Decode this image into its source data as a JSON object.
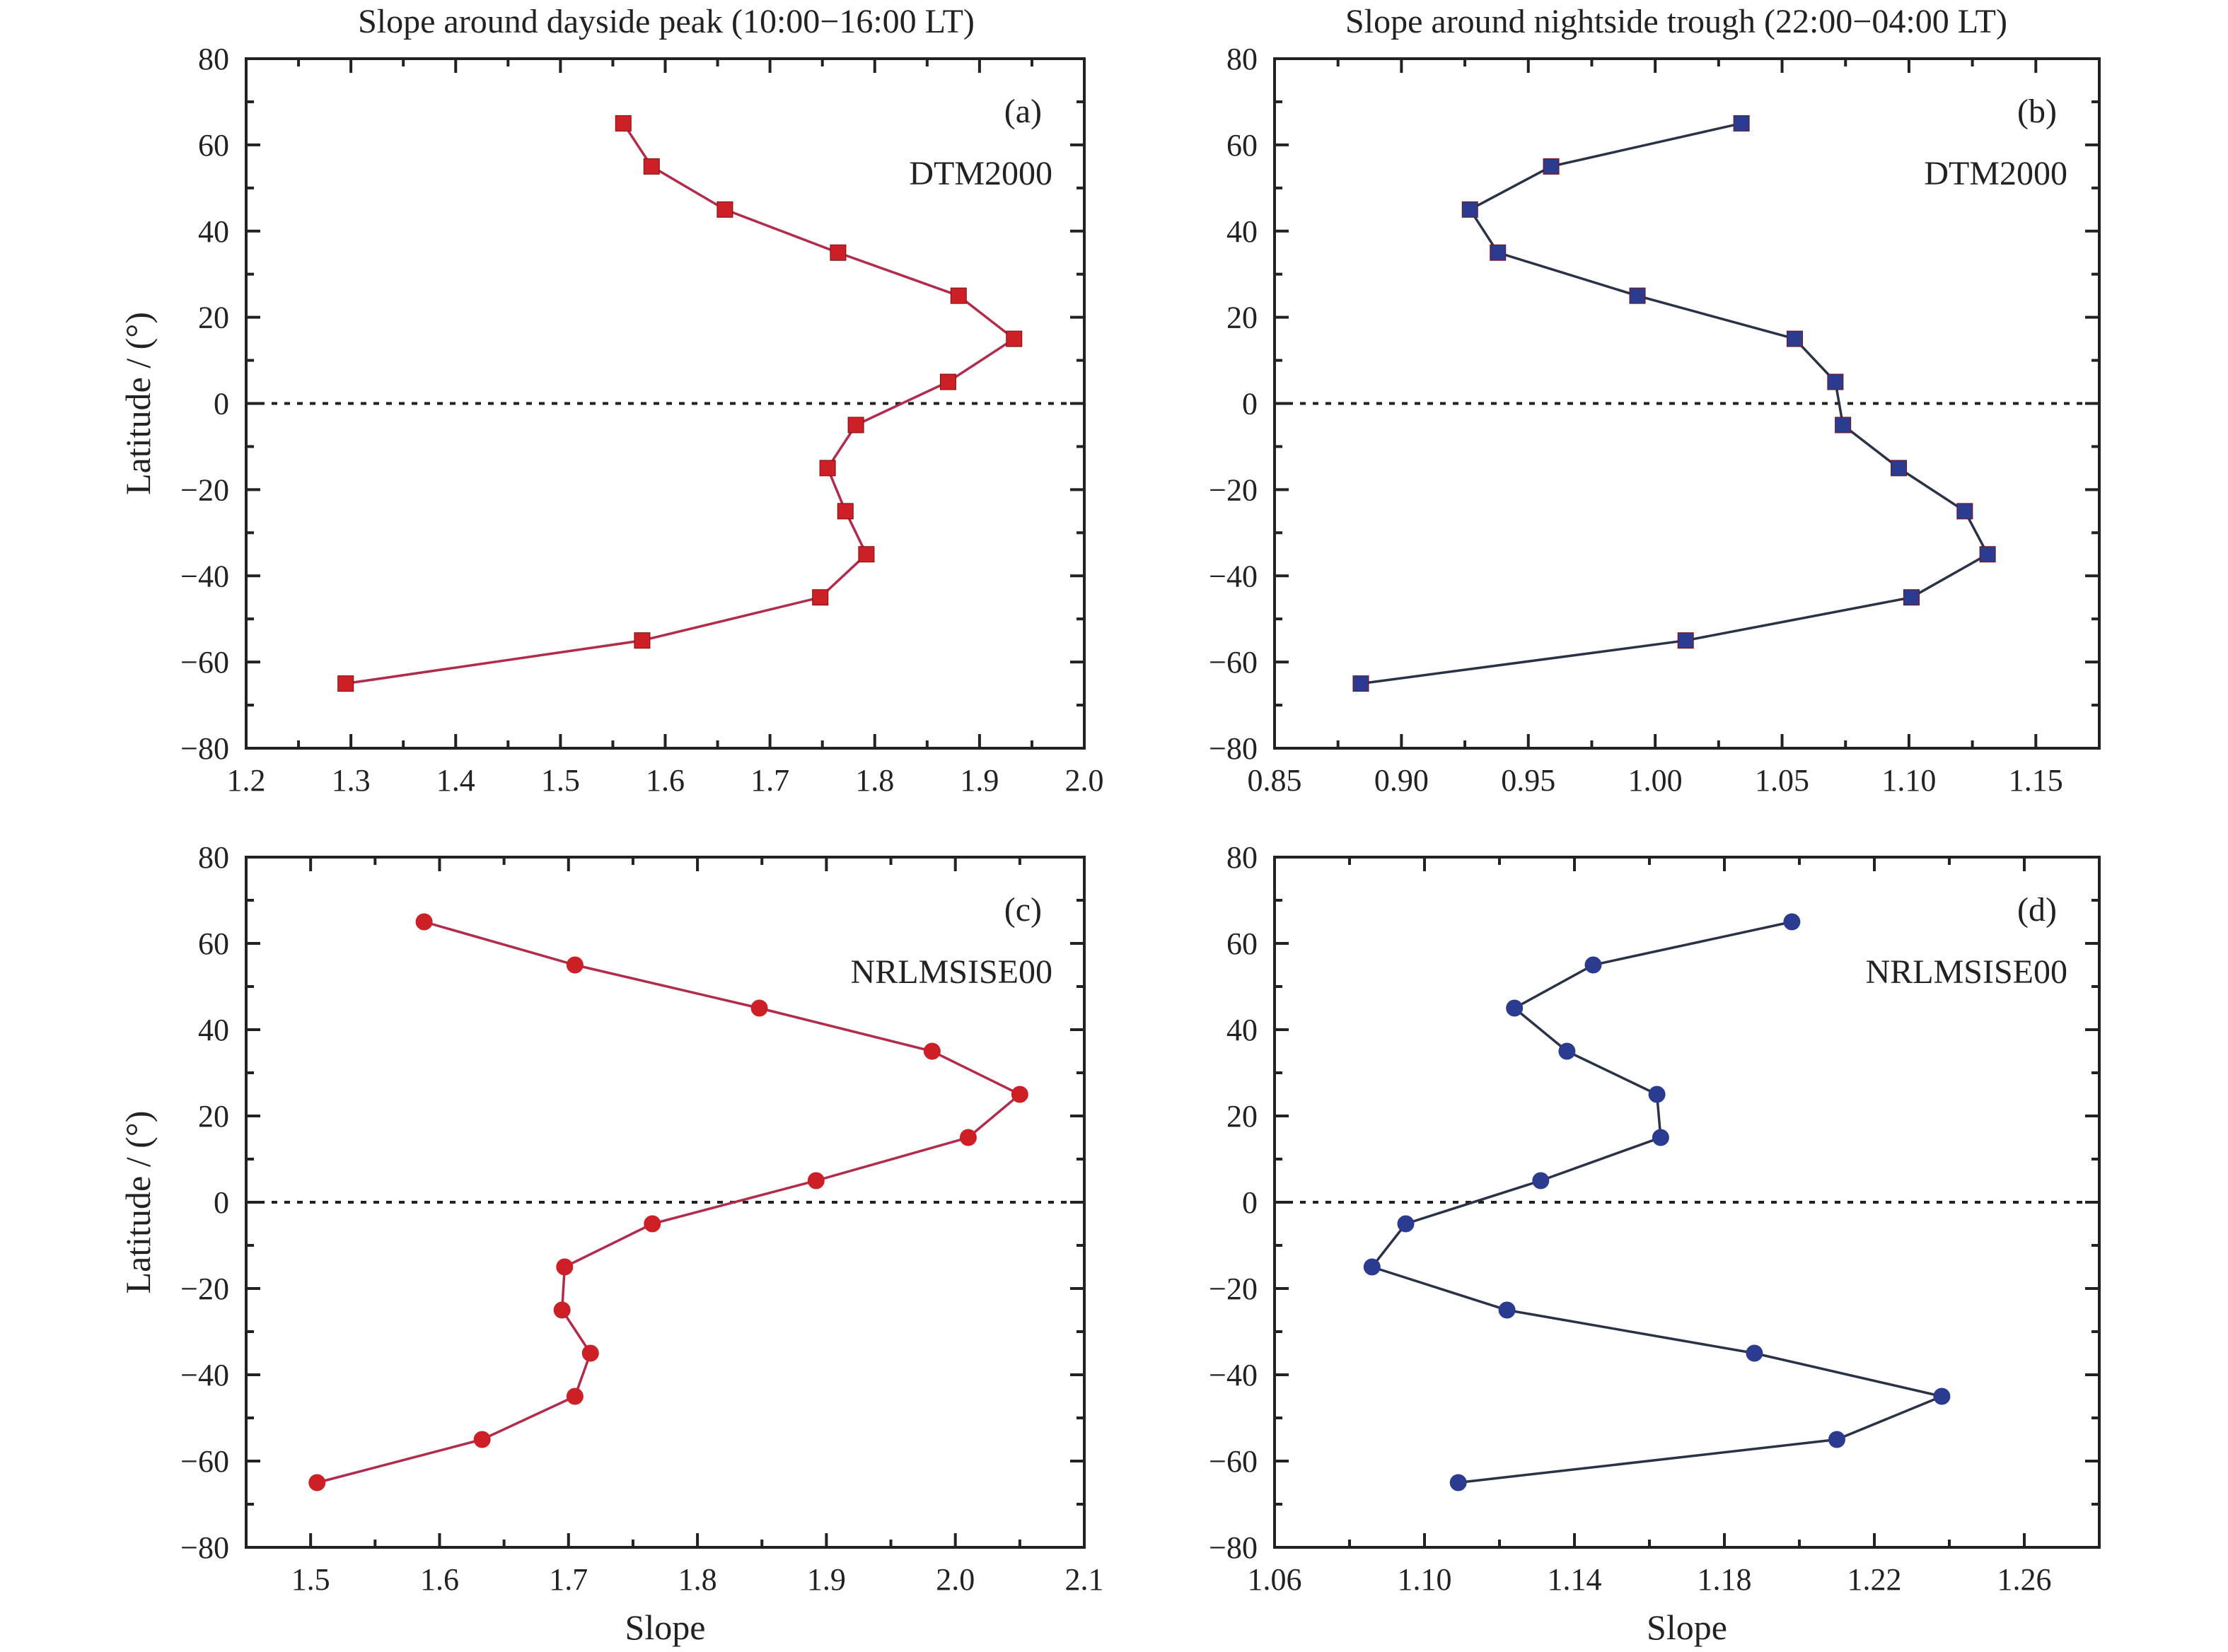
{
  "colors": {
    "red_marker": "#cc1f26",
    "red_line": "#b22b4a",
    "blue_marker": "#2b3b8f",
    "blue_line": "#2a3247",
    "axis": "#222222"
  },
  "column_titles": {
    "left": "Slope around dayside peak (10:00−16:00 LT)",
    "right": "Slope around nightside trough (22:00−04:00 LT)"
  },
  "chart_data": [
    {
      "id": "a",
      "type": "line",
      "marker": "square",
      "color": "red",
      "panel_label": "(a)",
      "model_label": "DTM2000",
      "xlabel": "",
      "ylabel": "Latitude / (°)",
      "xlim": [
        1.2,
        2.0
      ],
      "ylim": [
        -80,
        80
      ],
      "xticks": [
        1.2,
        1.3,
        1.4,
        1.5,
        1.6,
        1.7,
        1.8,
        1.9,
        2.0
      ],
      "xtick_labels": [
        "1.2",
        "1.3",
        "1.4",
        "1.5",
        "1.6",
        "1.7",
        "1.8",
        "1.9",
        "2.0"
      ],
      "yticks": [
        -80,
        -60,
        -40,
        -20,
        0,
        20,
        40,
        60,
        80
      ],
      "ytick_labels": [
        "−80",
        "−60",
        "−40",
        "−20",
        "0",
        "20",
        "40",
        "60",
        "80"
      ],
      "y": [
        65,
        55,
        45,
        35,
        25,
        15,
        5,
        -5,
        -15,
        -25,
        -35,
        -45,
        -55,
        -65
      ],
      "x": [
        1.56,
        1.587,
        1.657,
        1.765,
        1.88,
        1.933,
        1.87,
        1.782,
        1.755,
        1.772,
        1.792,
        1.748,
        1.578,
        1.295
      ]
    },
    {
      "id": "b",
      "type": "line",
      "marker": "square",
      "color": "blue",
      "panel_label": "(b)",
      "model_label": "DTM2000",
      "xlabel": "",
      "ylabel": "",
      "xlim": [
        0.85,
        1.175
      ],
      "ylim": [
        -80,
        80
      ],
      "xticks": [
        0.85,
        0.9,
        0.95,
        1.0,
        1.05,
        1.1,
        1.15
      ],
      "xtick_labels": [
        "0.85",
        "0.90",
        "0.95",
        "1.00",
        "1.05",
        "1.10",
        "1.15"
      ],
      "yticks": [
        -80,
        -60,
        -40,
        -20,
        0,
        20,
        40,
        60,
        80
      ],
      "ytick_labels": [
        "−80",
        "−60",
        "−40",
        "−20",
        "0",
        "20",
        "40",
        "60",
        "80"
      ],
      "y": [
        65,
        55,
        45,
        35,
        25,
        15,
        5,
        -5,
        -15,
        -25,
        -35,
        -45,
        -55,
        -65
      ],
      "x": [
        1.034,
        0.959,
        0.927,
        0.938,
        0.993,
        1.055,
        1.071,
        1.074,
        1.096,
        1.122,
        1.131,
        1.101,
        1.012,
        0.884
      ]
    },
    {
      "id": "c",
      "type": "line",
      "marker": "circle",
      "color": "red",
      "panel_label": "(c)",
      "model_label": "NRLMSISE00",
      "xlabel": "Slope",
      "ylabel": "Latitude / (°)",
      "xlim": [
        1.45,
        2.1
      ],
      "ylim": [
        -80,
        80
      ],
      "xticks": [
        1.5,
        1.6,
        1.7,
        1.8,
        1.9,
        2.0,
        2.1
      ],
      "xtick_labels": [
        "1.5",
        "1.6",
        "1.7",
        "1.8",
        "1.9",
        "2.0",
        "2.1"
      ],
      "yticks": [
        -80,
        -60,
        -40,
        -20,
        0,
        20,
        40,
        60,
        80
      ],
      "ytick_labels": [
        "−80",
        "−60",
        "−40",
        "−20",
        "0",
        "20",
        "40",
        "60",
        "80"
      ],
      "y": [
        65,
        55,
        45,
        35,
        25,
        15,
        5,
        -5,
        -15,
        -25,
        -35,
        -45,
        -55,
        -65
      ],
      "x": [
        1.588,
        1.705,
        1.848,
        1.982,
        2.05,
        2.01,
        1.892,
        1.765,
        1.697,
        1.695,
        1.717,
        1.705,
        1.633,
        1.505
      ]
    },
    {
      "id": "d",
      "type": "line",
      "marker": "circle",
      "color": "blue",
      "panel_label": "(d)",
      "model_label": "NRLMSISE00",
      "xlabel": "Slope",
      "ylabel": "",
      "xlim": [
        1.06,
        1.28
      ],
      "ylim": [
        -80,
        80
      ],
      "xticks": [
        1.06,
        1.1,
        1.14,
        1.18,
        1.22,
        1.26
      ],
      "xtick_labels": [
        "1.06",
        "1.10",
        "1.14",
        "1.18",
        "1.22",
        "1.26"
      ],
      "yticks": [
        -80,
        -60,
        -40,
        -20,
        0,
        20,
        40,
        60,
        80
      ],
      "ytick_labels": [
        "−80",
        "−60",
        "−40",
        "−20",
        "0",
        "20",
        "40",
        "60",
        "80"
      ],
      "y": [
        65,
        55,
        45,
        35,
        25,
        15,
        5,
        -5,
        -15,
        -25,
        -35,
        -45,
        -55,
        -65
      ],
      "x": [
        1.198,
        1.145,
        1.124,
        1.138,
        1.162,
        1.163,
        1.131,
        1.095,
        1.086,
        1.122,
        1.188,
        1.238,
        1.21,
        1.109
      ]
    }
  ]
}
